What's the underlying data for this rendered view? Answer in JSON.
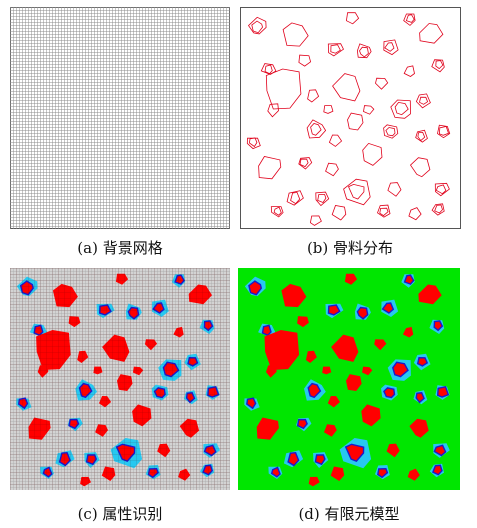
{
  "captions": {
    "a": "(a) 背景网格",
    "b": "(b) 骨料分布",
    "c": "(c) 属性识别",
    "d": "(d) 有限元模型"
  },
  "colors": {
    "grid_line": "#8c8c8c",
    "aggregate_outline": "#e0001a",
    "aggregate_fill": "#ff0000",
    "interface_zone": "#27c8f0",
    "interface_outline": "#1a1acc",
    "matrix_gray": "#d3d3d3",
    "matrix_green": "#00e600",
    "frame": "#555555"
  }
}
